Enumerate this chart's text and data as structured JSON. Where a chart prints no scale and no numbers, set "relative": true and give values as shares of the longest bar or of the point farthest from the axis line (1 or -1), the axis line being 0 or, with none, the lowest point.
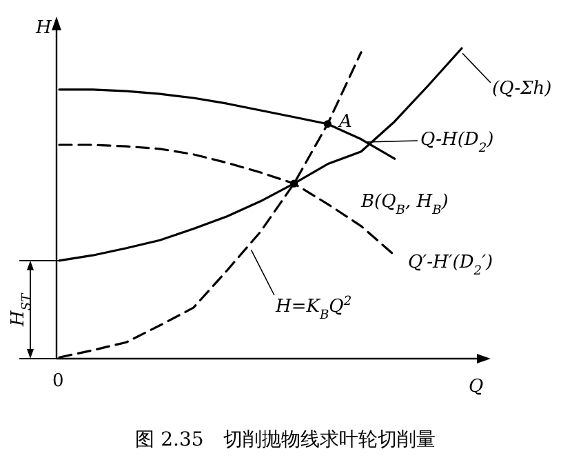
{
  "chart_data": {
    "type": "line",
    "relative": true,
    "title": "图 2.35　切削抛物线求叶轮切削量",
    "xlabel": "Q",
    "ylabel": "H",
    "categories": [
      null,
      null,
      null,
      null,
      null,
      null,
      null,
      null,
      null,
      null,
      null,
      null,
      null
    ],
    "series": [
      {
        "name": "Q-H(D$_{2}$)",
        "color": "#000000",
        "line_style": "solid",
        "values": [
          0.867,
          0.867,
          0.862,
          0.853,
          0.84,
          0.822,
          0.8,
          0.778,
          0.756,
          0.707,
          0.644,
          null,
          null
        ]
      },
      {
        "name": "Q′-H′(D$_{2}$′)",
        "color": "#000000",
        "line_style": "dashed",
        "values": [
          0.689,
          0.689,
          0.684,
          0.676,
          0.658,
          0.631,
          0.6,
          0.564,
          0.498,
          0.427,
          0.333,
          null,
          null
        ]
      },
      {
        "name": "(Q-Σh)",
        "color": "#000000",
        "line_style": "solid",
        "values": [
          0.316,
          0.333,
          0.356,
          0.382,
          0.418,
          0.458,
          0.507,
          0.564,
          0.627,
          0.667,
          0.764,
          0.88,
          1
        ]
      },
      {
        "name": "H=K$_{B}$Q$^{2}$",
        "color": "#000000",
        "line_style": "dashed",
        "values": [
          0.004,
          0.027,
          0.053,
          0.107,
          0.164,
          0.284,
          0.409,
          0.564,
          0.756,
          0.987,
          null,
          null,
          null
        ]
      }
    ],
    "annotations": [
      "A",
      "B(Q$_{B}$, H$_{B}$)",
      "H$_{ST}$",
      "0"
    ]
  }
}
